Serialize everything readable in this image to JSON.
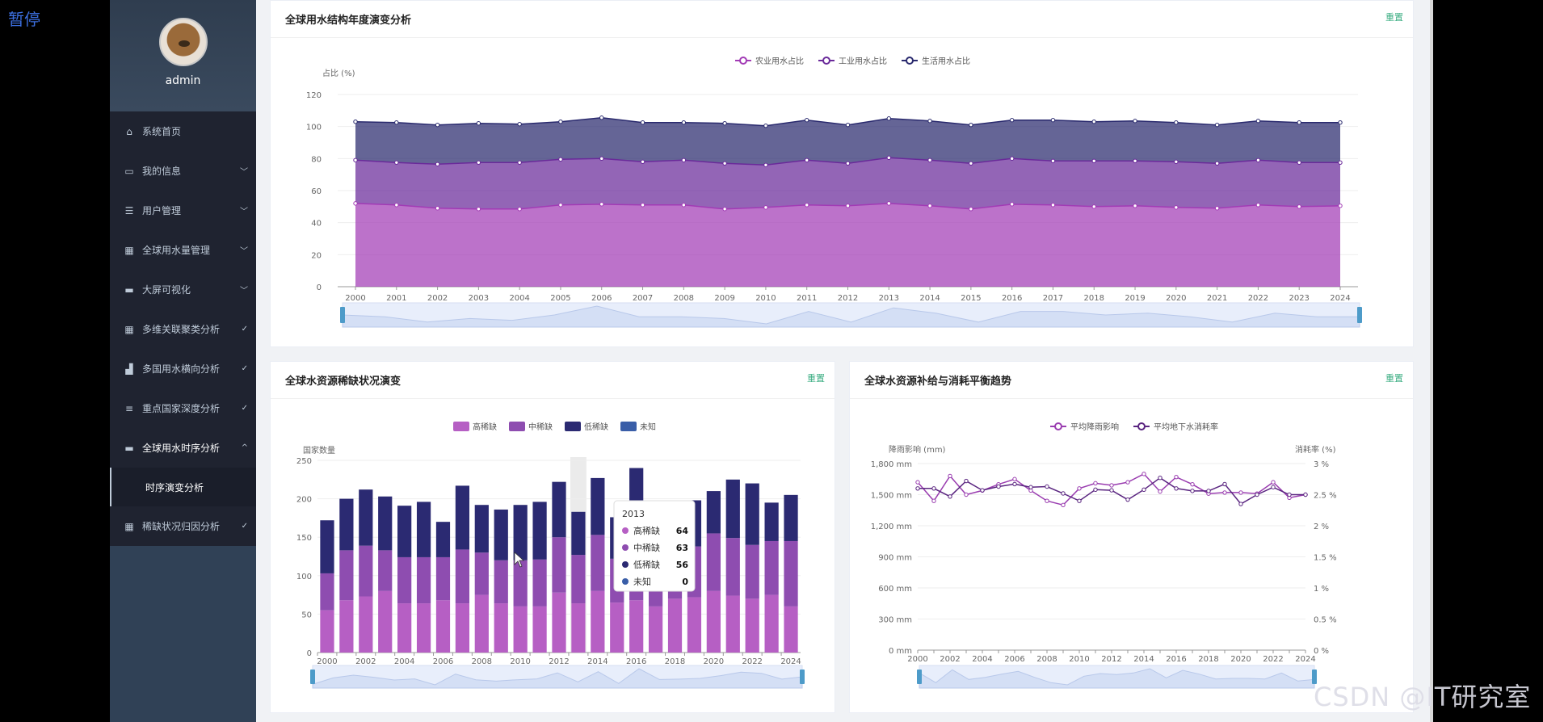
{
  "overlay": {
    "pause_label": "暂停",
    "watermark": "CSDN @IT研究室"
  },
  "user": {
    "name": "admin"
  },
  "menu": {
    "items": [
      {
        "label": "系统首页",
        "icon": "home-icon",
        "glyph": "⌂"
      },
      {
        "label": "我的信息",
        "icon": "id-card-icon",
        "glyph": "▭",
        "chevron": "﹀"
      },
      {
        "label": "用户管理",
        "icon": "list-icon",
        "glyph": "☰",
        "chevron": "﹀"
      },
      {
        "label": "全球用水量管理",
        "icon": "grid-icon",
        "glyph": "▦",
        "chevron": "﹀"
      },
      {
        "label": "大屏可视化",
        "icon": "briefcase-icon",
        "glyph": "▬",
        "chevron": "﹀"
      },
      {
        "label": "多维关联聚类分析",
        "icon": "grid-icon",
        "glyph": "▦",
        "chevron": "✓"
      },
      {
        "label": "多国用水横向分析",
        "icon": "chart-icon",
        "glyph": "▟",
        "chevron": "✓"
      },
      {
        "label": "重点国家深度分析",
        "icon": "sliders-icon",
        "glyph": "≡",
        "chevron": "✓"
      },
      {
        "label": "全球用水时序分析",
        "icon": "chat-icon",
        "glyph": "▬",
        "chevron": "^"
      },
      {
        "label": "稀缺状况归因分析",
        "icon": "grid-icon",
        "glyph": "▦",
        "chevron": "✓"
      }
    ],
    "active_sub": "时序演变分析"
  },
  "colors": {
    "agri": "#a23bb5",
    "industry": "#6a2a9a",
    "domestic": "#2a2a6e",
    "high": "#b65fc4",
    "mid": "#8e4db0",
    "low": "#2b2a72",
    "unknown": "#3a5ea8",
    "rain": "#9a3db0",
    "ground": "#5a2580",
    "accent": "#3cae83"
  },
  "panels": {
    "structure": {
      "title": "全球用水结构年度演变分析",
      "reset": "重置"
    },
    "scarcity": {
      "title": "全球水资源稀缺状况演变",
      "reset": "重置"
    },
    "balance": {
      "title": "全球水资源补给与消耗平衡趋势",
      "reset": "重置"
    }
  },
  "chart_data": [
    {
      "type": "area",
      "stacked": true,
      "title": "全球用水结构年度演变分析",
      "ylabel": "占比 (%)",
      "ylim": [
        0,
        120
      ],
      "yticks": [
        0,
        20,
        40,
        60,
        80,
        100,
        120
      ],
      "x": [
        "2000",
        "2001",
        "2002",
        "2003",
        "2004",
        "2005",
        "2006",
        "2007",
        "2008",
        "2009",
        "2010",
        "2011",
        "2012",
        "2013",
        "2014",
        "2015",
        "2016",
        "2017",
        "2018",
        "2019",
        "2020",
        "2021",
        "2022",
        "2023",
        "2024"
      ],
      "series": [
        {
          "name": "农业用水占比",
          "values": [
            52,
            51,
            49,
            48.5,
            48.5,
            51,
            51.5,
            51,
            51,
            48.5,
            49.5,
            51,
            50.5,
            52,
            50.5,
            48.5,
            51.5,
            51,
            50,
            50.5,
            49.5,
            49,
            51,
            50,
            50.5
          ]
        },
        {
          "name": "工业用水占比",
          "values": [
            27,
            26.5,
            27.5,
            29,
            29,
            28.5,
            28.5,
            27,
            28,
            28.5,
            26.5,
            28,
            26.5,
            28.5,
            28.5,
            28.5,
            28.5,
            27.5,
            28.5,
            28,
            28.5,
            28,
            28,
            27.5,
            27
          ]
        },
        {
          "name": "生活用水占比",
          "values": [
            24,
            25,
            24.5,
            24.5,
            24,
            23.5,
            25.5,
            24.5,
            23.5,
            25,
            24.5,
            25,
            24,
            24.5,
            24.5,
            24,
            24,
            25.5,
            24.5,
            25,
            24.5,
            24,
            24.5,
            25,
            25
          ]
        }
      ]
    },
    {
      "type": "bar",
      "stacked": true,
      "title": "全球水资源稀缺状况演变",
      "ylabel": "国家数量",
      "ylim": [
        0,
        250
      ],
      "yticks": [
        0,
        50,
        100,
        150,
        200,
        250
      ],
      "categories": [
        "2000",
        "2001",
        "2002",
        "2003",
        "2004",
        "2005",
        "2006",
        "2007",
        "2008",
        "2009",
        "2010",
        "2011",
        "2012",
        "2013",
        "2014",
        "2015",
        "2016",
        "2017",
        "2018",
        "2019",
        "2020",
        "2021",
        "2022",
        "2023",
        "2024"
      ],
      "xtick_labels": [
        "2000",
        "2002",
        "2004",
        "2006",
        "2008",
        "2010",
        "2012",
        "2014",
        "2016",
        "2018",
        "2020",
        "2022",
        "2024"
      ],
      "series": [
        {
          "name": "高稀缺",
          "values": [
            55,
            68,
            73,
            80,
            64,
            64,
            68,
            64,
            75,
            64,
            60,
            60,
            78,
            64,
            80,
            65,
            68,
            60,
            70,
            72,
            80,
            74,
            70,
            75,
            60
          ]
        },
        {
          "name": "中稀缺",
          "values": [
            48,
            65,
            66,
            53,
            60,
            60,
            56,
            70,
            55,
            56,
            60,
            61,
            72,
            63,
            73,
            57,
            62,
            70,
            62,
            66,
            75,
            75,
            70,
            70,
            85
          ]
        },
        {
          "name": "低稀缺",
          "values": [
            69,
            67,
            73,
            70,
            67,
            72,
            46,
            83,
            62,
            66,
            72,
            75,
            72,
            56,
            74,
            54,
            110,
            63,
            63,
            60,
            55,
            76,
            80,
            50,
            60
          ]
        },
        {
          "name": "未知",
          "values": [
            0,
            0,
            0,
            0,
            0,
            0,
            0,
            0,
            0,
            0,
            0,
            0,
            0,
            0,
            0,
            0,
            0,
            0,
            0,
            0,
            0,
            0,
            0,
            0,
            0
          ]
        }
      ],
      "tooltip": {
        "year": "2013",
        "rows": [
          {
            "name": "高稀缺",
            "value": "64"
          },
          {
            "name": "中稀缺",
            "value": "63"
          },
          {
            "name": "低稀缺",
            "value": "56"
          },
          {
            "name": "未知",
            "value": "0"
          }
        ]
      }
    },
    {
      "type": "line",
      "title": "全球水资源补给与消耗平衡趋势",
      "ylabel_left": "降雨影响 (mm)",
      "ylabel_right": "消耗率 (%)",
      "ylim_left": [
        0,
        1800
      ],
      "ylim_right": [
        0,
        3
      ],
      "yticks_left": [
        "0 mm",
        "300 mm",
        "600 mm",
        "900 mm",
        "1,200 mm",
        "1,500 mm",
        "1,800 mm"
      ],
      "yticks_right": [
        "0 %",
        "0.5 %",
        "1 %",
        "1.5 %",
        "2 %",
        "2.5 %",
        "3 %"
      ],
      "x": [
        "2000",
        "2001",
        "2002",
        "2003",
        "2004",
        "2005",
        "2006",
        "2007",
        "2008",
        "2009",
        "2010",
        "2011",
        "2012",
        "2013",
        "2014",
        "2015",
        "2016",
        "2017",
        "2018",
        "2019",
        "2020",
        "2021",
        "2022",
        "2023",
        "2024"
      ],
      "xtick_labels": [
        "2000",
        "2002",
        "2004",
        "2006",
        "2008",
        "2010",
        "2012",
        "2014",
        "2016",
        "2018",
        "2020",
        "2022",
        "2024"
      ],
      "series": [
        {
          "name": "平均降雨影响",
          "axis": "left",
          "values": [
            1620,
            1440,
            1680,
            1500,
            1540,
            1600,
            1650,
            1540,
            1440,
            1400,
            1560,
            1610,
            1590,
            1620,
            1700,
            1530,
            1670,
            1600,
            1510,
            1520,
            1520,
            1510,
            1620,
            1470,
            1500
          ]
        },
        {
          "name": "平均地下水消耗率",
          "axis": "right",
          "values": [
            2.6,
            2.6,
            2.47,
            2.72,
            2.57,
            2.63,
            2.67,
            2.62,
            2.63,
            2.52,
            2.4,
            2.58,
            2.57,
            2.42,
            2.58,
            2.77,
            2.6,
            2.56,
            2.56,
            2.67,
            2.35,
            2.5,
            2.62,
            2.5,
            2.5
          ]
        }
      ]
    }
  ]
}
